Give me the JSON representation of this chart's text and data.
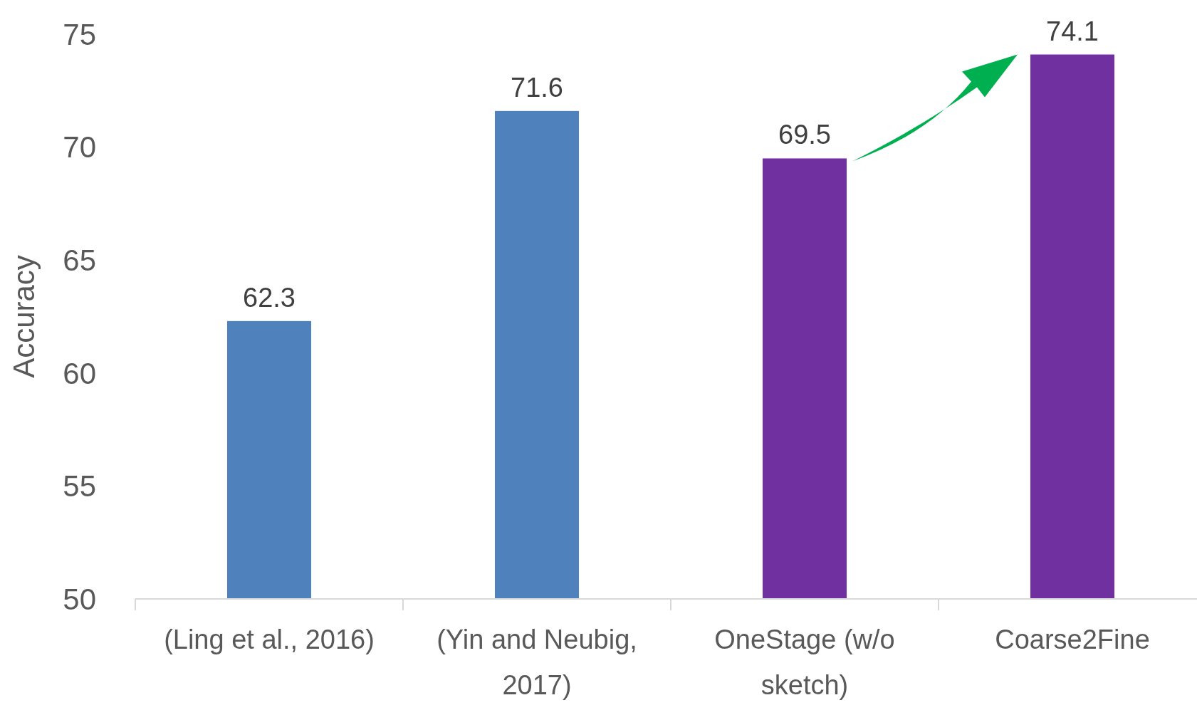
{
  "chart_data": {
    "type": "bar",
    "ylabel": "Accuracy",
    "categories": [
      "(Ling et al., 2016)",
      "(Yin and Neubig, 2017)",
      "OneStage (w/o sketch)",
      "Coarse2Fine"
    ],
    "values": [
      62.3,
      71.6,
      69.5,
      74.1
    ],
    "colors": [
      "#4f81bd",
      "#4f81bd",
      "#7030a0",
      "#7030a0"
    ],
    "ylim": [
      50,
      75
    ],
    "yticks": [
      50,
      55,
      60,
      65,
      70,
      75
    ],
    "grid": false,
    "data_labels": true
  }
}
